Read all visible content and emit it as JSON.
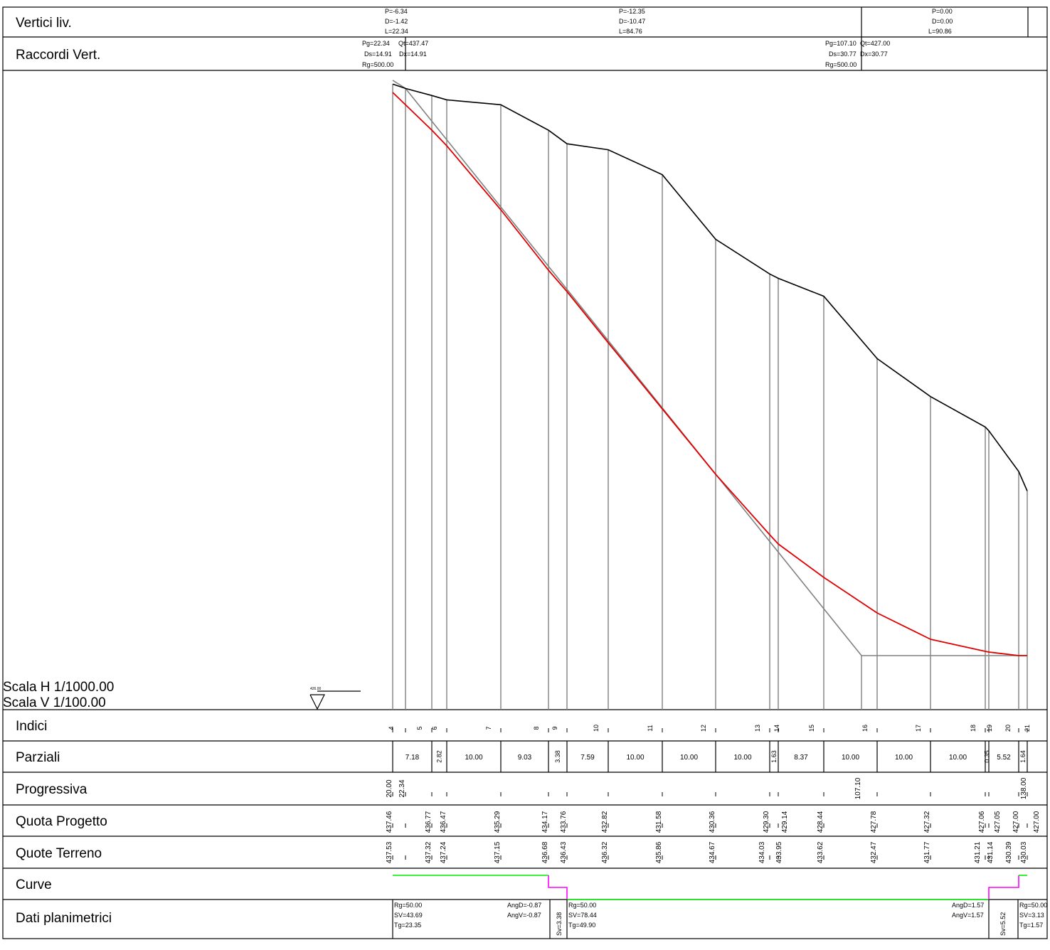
{
  "rows": {
    "vertici": "Vertici liv.",
    "raccordi": "Raccordi Vert.",
    "indici": "Indici",
    "parziali": "Parziali",
    "progressiva": "Progressiva",
    "quota_progetto": "Quota Progetto",
    "quote_terreno": "Quote Terreno",
    "curve": "Curve",
    "dati_planimetrici": "Dati planimetrici"
  },
  "scale": {
    "h": "Scala H  1/1000.00",
    "v": "Scala V  1/100.00",
    "datum": "426.00"
  },
  "vertici": [
    {
      "p": "P=-6.34",
      "d": "D=-1.42",
      "l": "L=22.34"
    },
    {
      "p": "P=-12.35",
      "d": "D=-10.47",
      "l": "L=84.76"
    },
    {
      "p": "P=0.00",
      "d": "D=0.00",
      "l": "L=90.86"
    }
  ],
  "raccordi": [
    {
      "pg": "Pg=22.34",
      "qt": "Qt=437.47",
      "ds": "Ds=14.91",
      "dx": "Dx=14.91",
      "rg": "Rg=500.00"
    },
    {
      "pg": "Pg=107.10",
      "qt": "Qt=427.00",
      "ds": "Ds=30.77",
      "dx": "Dx=30.77",
      "rg": "Rg=500.00"
    }
  ],
  "sections": [
    "4",
    "5",
    "6",
    "7",
    "8",
    "9",
    "10",
    "11",
    "12",
    "13",
    "14",
    "15",
    "16",
    "17",
    "18",
    "19",
    "20",
    "21"
  ],
  "parziali": [
    "7.18",
    "2.82",
    "10.00",
    "9.03",
    "3.38",
    "7.59",
    "10.00",
    "10.00",
    "10.00",
    "1.63",
    "8.37",
    "10.00",
    "10.00",
    "10.00",
    "0.35",
    "5.52",
    "1.64"
  ],
  "progressiva": [
    "20.00",
    "22.34",
    "107.10",
    "138.00"
  ],
  "quota_progetto": [
    "437.46",
    "436.77",
    "436.47",
    "435.29",
    "434.17",
    "433.76",
    "432.82",
    "431.58",
    "430.36",
    "429.30",
    "429.14",
    "428.44",
    "427.78",
    "427.32",
    "427.06",
    "427.05",
    "427.00",
    "427.00"
  ],
  "quote_terreno": [
    "437.53",
    "437.32",
    "437.24",
    "437.15",
    "436.68",
    "436.43",
    "436.32",
    "435.86",
    "434.67",
    "434.03",
    "433.95",
    "433.62",
    "432.47",
    "431.77",
    "431.21",
    "431.14",
    "430.39",
    "430.03"
  ],
  "dati_planimetrici": {
    "c1": {
      "rg": "Rg=50.00",
      "sv": "SV=43.69",
      "tg": "Tg=23.35"
    },
    "ang1": {
      "d": "AngD=-0.87",
      "v": "AngV=-0.87"
    },
    "sv1": "Sv=3.38",
    "c2": {
      "rg": "Rg=50.00",
      "sv": "SV=78.44",
      "tg": "Tg=49.90"
    },
    "ang2": {
      "d": "AngD=1.57",
      "v": "AngV=1.57"
    },
    "sv2": "Sv=5.52",
    "c3": {
      "rg": "Rg=50.00",
      "sv": "SV=3.13",
      "tg": "Tg=1.57"
    }
  },
  "colors": {
    "ground": "#000000",
    "project": "#e00000",
    "tangent": "#808080",
    "curve_straight": "#00ee00",
    "curve_arc": "#ff00ff",
    "border": "#000000"
  }
}
